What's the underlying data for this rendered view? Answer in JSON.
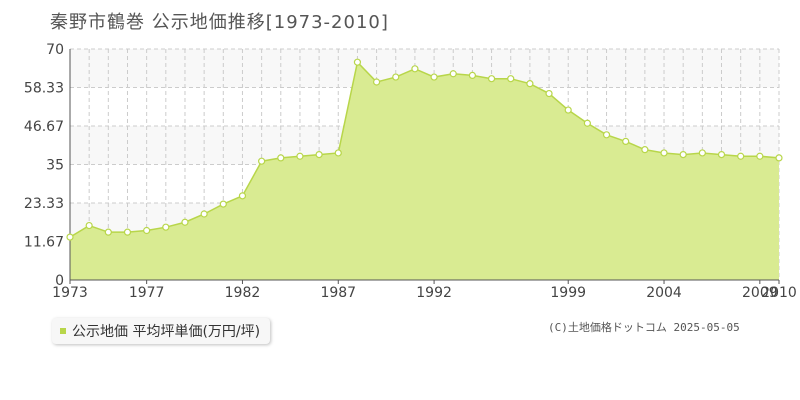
{
  "title": "秦野市鶴巻 公示地価推移[1973-2010]",
  "legend": {
    "label": "公示地価 平均坪単価(万円/坪)"
  },
  "credit": "(C)土地価格ドットコム 2025-05-05",
  "colors": {
    "fill": "#d9eb92",
    "line": "#b8d64a",
    "band": "#f8f8f8",
    "grid": "#cccccc",
    "axis": "#555555",
    "tick_text": "#444444"
  },
  "chart_data": {
    "type": "area",
    "ylim": [
      0,
      70
    ],
    "xlim": [
      1973,
      2010
    ],
    "y_ticks": [
      "0",
      "11.67",
      "23.33",
      "35",
      "46.67",
      "58.33",
      "70"
    ],
    "x_ticks": [
      "1973",
      "1977",
      "1982",
      "1987",
      "1992",
      "1999",
      "2004",
      "2009",
      "2010"
    ],
    "grid": true,
    "series": [
      {
        "x": [
          1973,
          1974,
          1975,
          1976,
          1977,
          1978,
          1979,
          1980,
          1981,
          1982,
          1983,
          1984,
          1985,
          1986,
          1987,
          1988,
          1989,
          1990,
          1991,
          1992,
          1993,
          1994,
          1995,
          1996,
          1997,
          1998,
          1999,
          2000,
          2001,
          2002,
          2003,
          2004,
          2005,
          2006,
          2007,
          2008,
          2009,
          2010
        ],
        "values": [
          13,
          16.5,
          14.5,
          14.5,
          15,
          16,
          17.5,
          20,
          23,
          25.5,
          36,
          37,
          37.5,
          38,
          38.5,
          66,
          60,
          61.5,
          64,
          61.5,
          62.5,
          62,
          61,
          61,
          59.5,
          56.5,
          51.5,
          47.5,
          44,
          42,
          39.5,
          38.5,
          38,
          38.5,
          38,
          37.5,
          37.5,
          37
        ]
      }
    ]
  }
}
